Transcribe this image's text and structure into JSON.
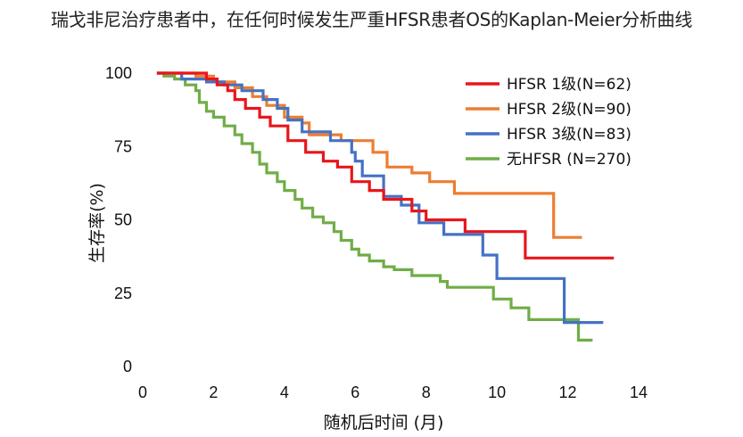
{
  "title": "瑞戈非尼治疗患者中，在任何时候发生严重HFSR患者OS的Kaplan-Meier分析曲线",
  "chart_data": {
    "type": "line",
    "step": true,
    "title": "瑞戈非尼治疗患者中，在任何时候发生严重HFSR患者OS的Kaplan-Meier分析曲线",
    "xlabel": "随机后时间 (月)",
    "ylabel": "生存率(%)",
    "xlim": [
      0,
      14
    ],
    "ylim": [
      0,
      100
    ],
    "xticks": [
      "0",
      "2",
      "4",
      "6",
      "8",
      "10",
      "12",
      "14"
    ],
    "yticks": [
      "0",
      "25",
      "50",
      "75",
      "100"
    ],
    "grid": false,
    "legend_position": "top-right",
    "series": [
      {
        "name": "HFSR 1级(N=62)",
        "color": "#e8161b",
        "points": [
          [
            0.4,
            100
          ],
          [
            1.8,
            100
          ],
          [
            1.8,
            98
          ],
          [
            2.1,
            98
          ],
          [
            2.1,
            96
          ],
          [
            2.4,
            96
          ],
          [
            2.4,
            94
          ],
          [
            2.6,
            94
          ],
          [
            2.6,
            91
          ],
          [
            2.9,
            91
          ],
          [
            2.9,
            88
          ],
          [
            3.3,
            88
          ],
          [
            3.3,
            85
          ],
          [
            3.6,
            85
          ],
          [
            3.6,
            82
          ],
          [
            4.1,
            82
          ],
          [
            4.1,
            77
          ],
          [
            4.6,
            77
          ],
          [
            4.6,
            73
          ],
          [
            5.1,
            73
          ],
          [
            5.1,
            70
          ],
          [
            5.5,
            70
          ],
          [
            5.5,
            68
          ],
          [
            5.9,
            68
          ],
          [
            5.9,
            63
          ],
          [
            6.4,
            63
          ],
          [
            6.4,
            60
          ],
          [
            6.8,
            60
          ],
          [
            6.8,
            57
          ],
          [
            7.6,
            57
          ],
          [
            7.6,
            53
          ],
          [
            8.0,
            53
          ],
          [
            8.0,
            50
          ],
          [
            9.1,
            50
          ],
          [
            9.1,
            46
          ],
          [
            10.8,
            46
          ],
          [
            10.8,
            37
          ],
          [
            13.3,
            37
          ]
        ]
      },
      {
        "name": "HFSR 2级(N=90)",
        "color": "#ed7d31",
        "points": [
          [
            0.4,
            100
          ],
          [
            1.5,
            100
          ],
          [
            1.5,
            99
          ],
          [
            2.0,
            99
          ],
          [
            2.0,
            97
          ],
          [
            2.6,
            97
          ],
          [
            2.6,
            95
          ],
          [
            3.1,
            95
          ],
          [
            3.1,
            92
          ],
          [
            3.5,
            92
          ],
          [
            3.5,
            89
          ],
          [
            4.0,
            89
          ],
          [
            4.0,
            85
          ],
          [
            4.5,
            85
          ],
          [
            4.5,
            83
          ],
          [
            4.7,
            83
          ],
          [
            4.7,
            79
          ],
          [
            5.6,
            79
          ],
          [
            5.6,
            77
          ],
          [
            6.5,
            77
          ],
          [
            6.5,
            73
          ],
          [
            6.9,
            73
          ],
          [
            6.9,
            68
          ],
          [
            7.6,
            68
          ],
          [
            7.6,
            66
          ],
          [
            8.1,
            66
          ],
          [
            8.1,
            63
          ],
          [
            8.8,
            63
          ],
          [
            8.8,
            59
          ],
          [
            11.6,
            59
          ],
          [
            11.6,
            44
          ],
          [
            12.4,
            44
          ]
        ]
      },
      {
        "name": "HFSR 3级(N=83)",
        "color": "#4472c4",
        "points": [
          [
            0.4,
            100
          ],
          [
            1.1,
            100
          ],
          [
            1.1,
            98
          ],
          [
            1.8,
            98
          ],
          [
            1.8,
            97
          ],
          [
            2.3,
            97
          ],
          [
            2.3,
            96
          ],
          [
            2.8,
            96
          ],
          [
            2.8,
            94
          ],
          [
            3.4,
            94
          ],
          [
            3.4,
            91
          ],
          [
            3.8,
            91
          ],
          [
            3.8,
            88
          ],
          [
            4.1,
            88
          ],
          [
            4.1,
            84
          ],
          [
            4.5,
            84
          ],
          [
            4.5,
            80
          ],
          [
            5.3,
            80
          ],
          [
            5.3,
            77
          ],
          [
            5.9,
            77
          ],
          [
            5.9,
            73
          ],
          [
            6.0,
            73
          ],
          [
            6.0,
            70
          ],
          [
            6.2,
            70
          ],
          [
            6.2,
            65
          ],
          [
            6.8,
            65
          ],
          [
            6.8,
            58
          ],
          [
            7.3,
            58
          ],
          [
            7.3,
            55
          ],
          [
            7.8,
            55
          ],
          [
            7.8,
            49
          ],
          [
            8.5,
            49
          ],
          [
            8.5,
            45
          ],
          [
            9.6,
            45
          ],
          [
            9.6,
            38
          ],
          [
            10.0,
            38
          ],
          [
            10.0,
            30
          ],
          [
            11.9,
            30
          ],
          [
            11.9,
            15
          ],
          [
            13.0,
            15
          ]
        ]
      },
      {
        "name": "无HFSR (N=270)",
        "color": "#70ad47",
        "points": [
          [
            0.4,
            100
          ],
          [
            0.6,
            100
          ],
          [
            0.6,
            99
          ],
          [
            0.9,
            99
          ],
          [
            0.9,
            98
          ],
          [
            1.2,
            98
          ],
          [
            1.2,
            96
          ],
          [
            1.5,
            96
          ],
          [
            1.5,
            94
          ],
          [
            1.6,
            94
          ],
          [
            1.6,
            90
          ],
          [
            1.8,
            90
          ],
          [
            1.8,
            87
          ],
          [
            2.0,
            87
          ],
          [
            2.0,
            85
          ],
          [
            2.3,
            85
          ],
          [
            2.3,
            82
          ],
          [
            2.6,
            82
          ],
          [
            2.6,
            79
          ],
          [
            2.8,
            79
          ],
          [
            2.8,
            76
          ],
          [
            3.1,
            76
          ],
          [
            3.1,
            73
          ],
          [
            3.3,
            73
          ],
          [
            3.3,
            69
          ],
          [
            3.5,
            69
          ],
          [
            3.5,
            66
          ],
          [
            3.8,
            66
          ],
          [
            3.8,
            63
          ],
          [
            4.0,
            63
          ],
          [
            4.0,
            60
          ],
          [
            4.3,
            60
          ],
          [
            4.3,
            57
          ],
          [
            4.5,
            57
          ],
          [
            4.5,
            54
          ],
          [
            4.8,
            54
          ],
          [
            4.8,
            51
          ],
          [
            5.1,
            51
          ],
          [
            5.1,
            49
          ],
          [
            5.4,
            49
          ],
          [
            5.4,
            46
          ],
          [
            5.6,
            46
          ],
          [
            5.6,
            43
          ],
          [
            5.9,
            43
          ],
          [
            5.9,
            40
          ],
          [
            6.1,
            40
          ],
          [
            6.1,
            38
          ],
          [
            6.4,
            38
          ],
          [
            6.4,
            36
          ],
          [
            6.8,
            36
          ],
          [
            6.8,
            34
          ],
          [
            7.1,
            34
          ],
          [
            7.1,
            33
          ],
          [
            7.6,
            33
          ],
          [
            7.6,
            31
          ],
          [
            8.4,
            31
          ],
          [
            8.4,
            29
          ],
          [
            8.6,
            29
          ],
          [
            8.6,
            27
          ],
          [
            9.9,
            27
          ],
          [
            9.9,
            23
          ],
          [
            10.4,
            23
          ],
          [
            10.4,
            20
          ],
          [
            10.9,
            20
          ],
          [
            10.9,
            16
          ],
          [
            12.3,
            16
          ],
          [
            12.3,
            9
          ],
          [
            12.7,
            9
          ]
        ]
      }
    ]
  }
}
